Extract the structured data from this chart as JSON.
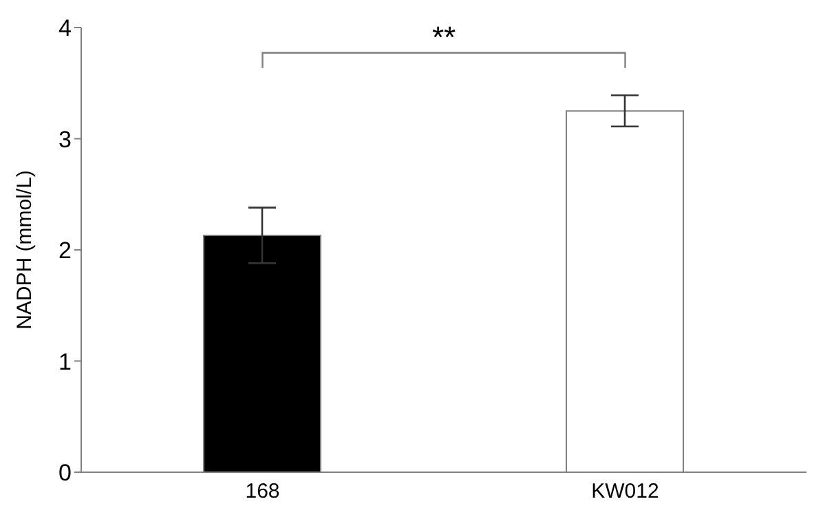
{
  "chart_data": {
    "type": "bar",
    "ylabel": "NADPH (mmol/L)",
    "categories": [
      "168",
      "KW012"
    ],
    "values": [
      2.13,
      3.25
    ],
    "colors": [
      "#000000",
      "#ffffff"
    ],
    "errors": [
      0.25,
      0.14
    ],
    "ylim": [
      0,
      4
    ],
    "yticks": [
      0,
      1,
      2,
      3,
      4
    ],
    "annotations": [
      "**"
    ],
    "grid": false,
    "legend": false
  }
}
